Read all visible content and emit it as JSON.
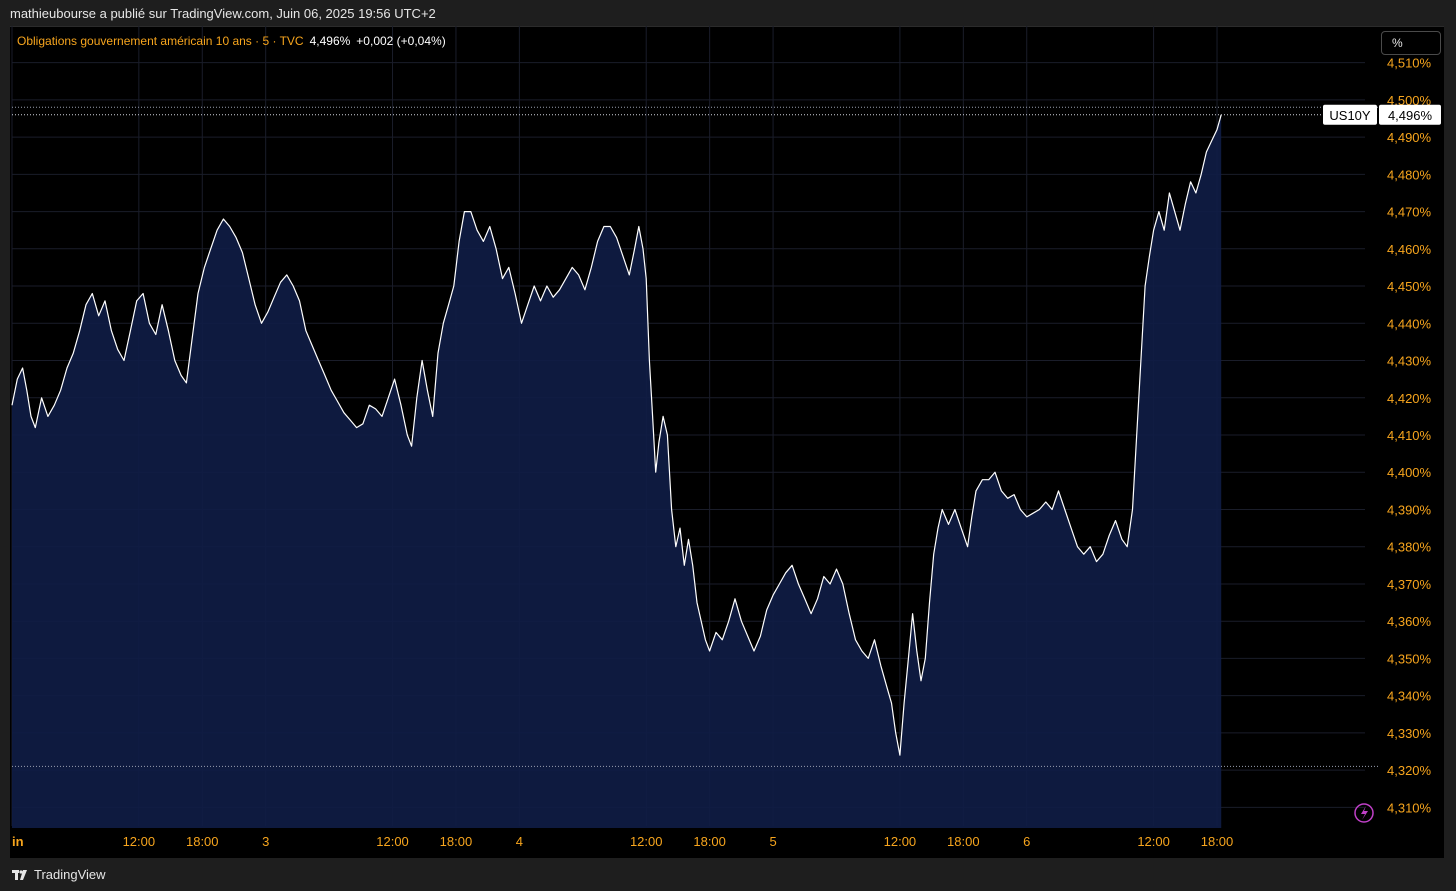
{
  "header": {
    "attribution": "mathieubourse a publié sur TradingView.com, Juin 06, 2025 19:56 UTC+2"
  },
  "legend": {
    "symbol_desc": "Obligations gouvernement américain 10 ans · 5 · TVC",
    "last": "4,496%",
    "change": "+0,002 (+0,04%)"
  },
  "unit_button": "%",
  "price_label": {
    "ticker": "US10Y",
    "value": "4,496%"
  },
  "footer": {
    "brand": "TradingView"
  },
  "colors": {
    "axis_text": "#f7a51d",
    "line": "#ffffff",
    "area_fill": "#0f1d46",
    "background": "#000000"
  },
  "chart_data": {
    "type": "area",
    "title": "Obligations gouvernement américain 10 ans · 5 · TVC",
    "ylim": [
      4.305,
      4.515
    ],
    "y_ticks": [
      4.31,
      4.32,
      4.33,
      4.34,
      4.35,
      4.36,
      4.37,
      4.38,
      4.39,
      4.4,
      4.41,
      4.42,
      4.43,
      4.44,
      4.45,
      4.46,
      4.47,
      4.48,
      4.49,
      4.5,
      4.51
    ],
    "y_tick_labels": [
      "4,310%",
      "4,320%",
      "4,330%",
      "4,340%",
      "4,350%",
      "4,360%",
      "4,370%",
      "4,380%",
      "4,390%",
      "4,400%",
      "4,410%",
      "4,420%",
      "4,430%",
      "4,440%",
      "4,450%",
      "4,460%",
      "4,470%",
      "4,480%",
      "4,490%",
      "4,500%",
      "4,510%"
    ],
    "x_ticks": [
      {
        "label": "in",
        "t": 0
      },
      {
        "label": "12:00",
        "t": 12
      },
      {
        "label": "18:00",
        "t": 18
      },
      {
        "label": "3",
        "t": 24
      },
      {
        "label": "12:00",
        "t": 36
      },
      {
        "label": "18:00",
        "t": 42
      },
      {
        "label": "4",
        "t": 48
      },
      {
        "label": "12:00",
        "t": 60
      },
      {
        "label": "18:00",
        "t": 66
      },
      {
        "label": "5",
        "t": 72
      },
      {
        "label": "12:00",
        "t": 84
      },
      {
        "label": "18:00",
        "t": 90
      },
      {
        "label": "6",
        "t": 96
      },
      {
        "label": "12:00",
        "t": 108
      },
      {
        "label": "18:00",
        "t": 114
      }
    ],
    "series": [
      {
        "values": [
          [
            0.0,
            4.418
          ],
          [
            0.5,
            4.425
          ],
          [
            1.0,
            4.428
          ],
          [
            1.4,
            4.422
          ],
          [
            1.8,
            4.415
          ],
          [
            2.2,
            4.412
          ],
          [
            2.8,
            4.42
          ],
          [
            3.4,
            4.415
          ],
          [
            4.0,
            4.418
          ],
          [
            4.6,
            4.422
          ],
          [
            5.2,
            4.428
          ],
          [
            5.8,
            4.432
          ],
          [
            6.4,
            4.438
          ],
          [
            7.0,
            4.445
          ],
          [
            7.6,
            4.448
          ],
          [
            8.2,
            4.442
          ],
          [
            8.8,
            4.446
          ],
          [
            9.4,
            4.438
          ],
          [
            10.0,
            4.433
          ],
          [
            10.6,
            4.43
          ],
          [
            11.2,
            4.438
          ],
          [
            11.8,
            4.446
          ],
          [
            12.4,
            4.448
          ],
          [
            13.0,
            4.44
          ],
          [
            13.6,
            4.437
          ],
          [
            14.2,
            4.445
          ],
          [
            14.8,
            4.438
          ],
          [
            15.4,
            4.43
          ],
          [
            16.0,
            4.426
          ],
          [
            16.5,
            4.424
          ],
          [
            17.0,
            4.435
          ],
          [
            17.6,
            4.448
          ],
          [
            18.2,
            4.455
          ],
          [
            18.8,
            4.46
          ],
          [
            19.4,
            4.465
          ],
          [
            20.0,
            4.468
          ],
          [
            20.6,
            4.466
          ],
          [
            21.2,
            4.463
          ],
          [
            21.8,
            4.459
          ],
          [
            22.4,
            4.452
          ],
          [
            23.0,
            4.445
          ],
          [
            23.6,
            4.44
          ],
          [
            24.2,
            4.443
          ],
          [
            24.8,
            4.447
          ],
          [
            25.4,
            4.451
          ],
          [
            26.0,
            4.453
          ],
          [
            26.6,
            4.45
          ],
          [
            27.2,
            4.446
          ],
          [
            27.8,
            4.438
          ],
          [
            28.4,
            4.434
          ],
          [
            29.0,
            4.43
          ],
          [
            29.6,
            4.426
          ],
          [
            30.2,
            4.422
          ],
          [
            30.8,
            4.419
          ],
          [
            31.4,
            4.416
          ],
          [
            32.0,
            4.414
          ],
          [
            32.6,
            4.412
          ],
          [
            33.2,
            4.413
          ],
          [
            33.8,
            4.418
          ],
          [
            34.4,
            4.417
          ],
          [
            35.0,
            4.415
          ],
          [
            35.6,
            4.42
          ],
          [
            36.2,
            4.425
          ],
          [
            36.8,
            4.418
          ],
          [
            37.4,
            4.41
          ],
          [
            37.8,
            4.407
          ],
          [
            38.3,
            4.42
          ],
          [
            38.8,
            4.43
          ],
          [
            39.3,
            4.422
          ],
          [
            39.8,
            4.415
          ],
          [
            40.3,
            4.432
          ],
          [
            40.8,
            4.44
          ],
          [
            41.3,
            4.445
          ],
          [
            41.8,
            4.45
          ],
          [
            42.3,
            4.462
          ],
          [
            42.8,
            4.47
          ],
          [
            43.4,
            4.47
          ],
          [
            44.0,
            4.465
          ],
          [
            44.6,
            4.462
          ],
          [
            45.2,
            4.466
          ],
          [
            45.8,
            4.46
          ],
          [
            46.4,
            4.452
          ],
          [
            47.0,
            4.455
          ],
          [
            47.6,
            4.448
          ],
          [
            48.2,
            4.44
          ],
          [
            48.8,
            4.445
          ],
          [
            49.4,
            4.45
          ],
          [
            50.0,
            4.446
          ],
          [
            50.6,
            4.45
          ],
          [
            51.2,
            4.447
          ],
          [
            51.8,
            4.449
          ],
          [
            52.4,
            4.452
          ],
          [
            53.0,
            4.455
          ],
          [
            53.6,
            4.453
          ],
          [
            54.2,
            4.449
          ],
          [
            54.8,
            4.455
          ],
          [
            55.4,
            4.462
          ],
          [
            56.0,
            4.466
          ],
          [
            56.6,
            4.466
          ],
          [
            57.2,
            4.463
          ],
          [
            57.8,
            4.458
          ],
          [
            58.4,
            4.453
          ],
          [
            58.9,
            4.46
          ],
          [
            59.3,
            4.466
          ],
          [
            59.7,
            4.46
          ],
          [
            60.0,
            4.452
          ],
          [
            60.3,
            4.43
          ],
          [
            60.6,
            4.415
          ],
          [
            60.9,
            4.4
          ],
          [
            61.2,
            4.408
          ],
          [
            61.6,
            4.415
          ],
          [
            62.0,
            4.41
          ],
          [
            62.4,
            4.39
          ],
          [
            62.8,
            4.38
          ],
          [
            63.2,
            4.385
          ],
          [
            63.6,
            4.375
          ],
          [
            64.0,
            4.382
          ],
          [
            64.4,
            4.375
          ],
          [
            64.8,
            4.365
          ],
          [
            65.2,
            4.36
          ],
          [
            65.6,
            4.355
          ],
          [
            66.0,
            4.352
          ],
          [
            66.6,
            4.357
          ],
          [
            67.2,
            4.355
          ],
          [
            67.8,
            4.36
          ],
          [
            68.4,
            4.366
          ],
          [
            69.0,
            4.36
          ],
          [
            69.6,
            4.356
          ],
          [
            70.2,
            4.352
          ],
          [
            70.8,
            4.356
          ],
          [
            71.4,
            4.363
          ],
          [
            72.0,
            4.367
          ],
          [
            72.6,
            4.37
          ],
          [
            73.2,
            4.373
          ],
          [
            73.8,
            4.375
          ],
          [
            74.4,
            4.37
          ],
          [
            75.0,
            4.366
          ],
          [
            75.6,
            4.362
          ],
          [
            76.2,
            4.366
          ],
          [
            76.8,
            4.372
          ],
          [
            77.4,
            4.37
          ],
          [
            78.0,
            4.374
          ],
          [
            78.6,
            4.37
          ],
          [
            79.2,
            4.362
          ],
          [
            79.8,
            4.355
          ],
          [
            80.4,
            4.352
          ],
          [
            81.0,
            4.35
          ],
          [
            81.6,
            4.355
          ],
          [
            82.2,
            4.348
          ],
          [
            82.8,
            4.342
          ],
          [
            83.2,
            4.338
          ],
          [
            83.6,
            4.33
          ],
          [
            84.0,
            4.324
          ],
          [
            84.4,
            4.338
          ],
          [
            84.8,
            4.35
          ],
          [
            85.2,
            4.362
          ],
          [
            85.6,
            4.352
          ],
          [
            86.0,
            4.344
          ],
          [
            86.4,
            4.35
          ],
          [
            86.8,
            4.365
          ],
          [
            87.2,
            4.378
          ],
          [
            87.6,
            4.385
          ],
          [
            88.0,
            4.39
          ],
          [
            88.6,
            4.386
          ],
          [
            89.2,
            4.39
          ],
          [
            89.8,
            4.385
          ],
          [
            90.4,
            4.38
          ],
          [
            90.8,
            4.388
          ],
          [
            91.2,
            4.395
          ],
          [
            91.8,
            4.398
          ],
          [
            92.4,
            4.398
          ],
          [
            93.0,
            4.4
          ],
          [
            93.6,
            4.395
          ],
          [
            94.2,
            4.393
          ],
          [
            94.8,
            4.394
          ],
          [
            95.4,
            4.39
          ],
          [
            96.0,
            4.388
          ],
          [
            96.6,
            4.389
          ],
          [
            97.2,
            4.39
          ],
          [
            97.8,
            4.392
          ],
          [
            98.4,
            4.39
          ],
          [
            99.0,
            4.395
          ],
          [
            99.6,
            4.39
          ],
          [
            100.2,
            4.385
          ],
          [
            100.8,
            4.38
          ],
          [
            101.4,
            4.378
          ],
          [
            102.0,
            4.38
          ],
          [
            102.6,
            4.376
          ],
          [
            103.2,
            4.378
          ],
          [
            103.8,
            4.383
          ],
          [
            104.4,
            4.387
          ],
          [
            105.0,
            4.382
          ],
          [
            105.5,
            4.38
          ],
          [
            106.0,
            4.39
          ],
          [
            106.4,
            4.41
          ],
          [
            106.8,
            4.43
          ],
          [
            107.2,
            4.45
          ],
          [
            107.6,
            4.458
          ],
          [
            108.0,
            4.465
          ],
          [
            108.5,
            4.47
          ],
          [
            109.0,
            4.465
          ],
          [
            109.5,
            4.475
          ],
          [
            110.0,
            4.47
          ],
          [
            110.5,
            4.465
          ],
          [
            111.0,
            4.472
          ],
          [
            111.5,
            4.478
          ],
          [
            112.0,
            4.475
          ],
          [
            112.5,
            4.48
          ],
          [
            113.0,
            4.486
          ],
          [
            113.5,
            4.489
          ],
          [
            114.0,
            4.492
          ],
          [
            114.4,
            4.496
          ]
        ]
      }
    ],
    "reference_lines": [
      4.498,
      4.321
    ],
    "last_value": 4.496
  }
}
